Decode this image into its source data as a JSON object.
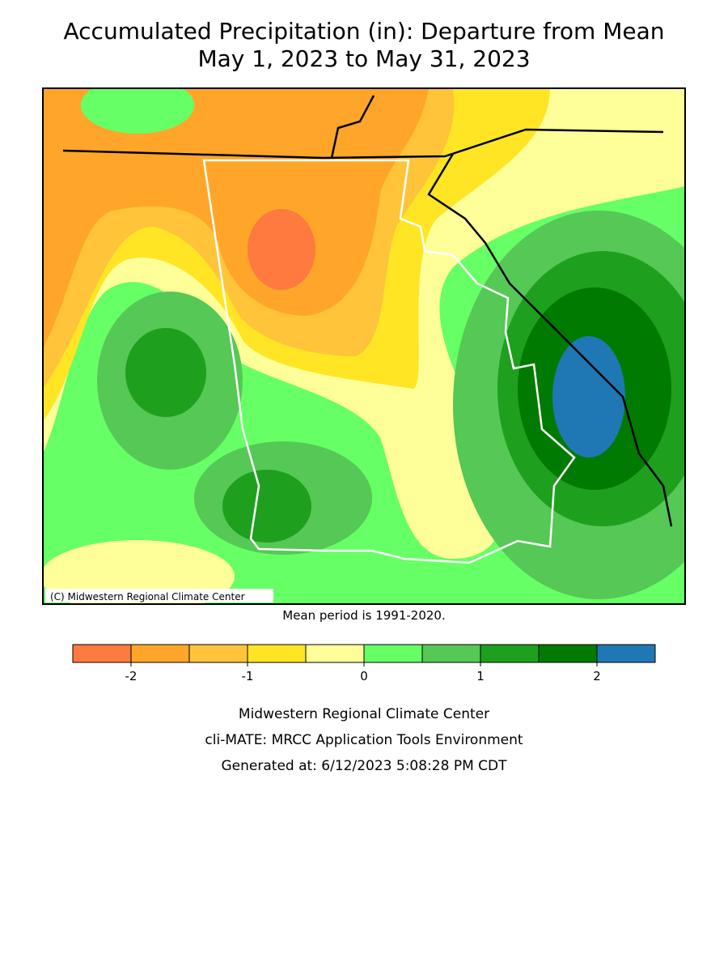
{
  "header": {
    "title": "Accumulated Precipitation (in): Departure from Mean",
    "subtitle": "May 1, 2023 to May 31, 2023"
  },
  "map": {
    "copyright": "(C) Midwestern Regional Climate Center",
    "note": "Mean period is 1991-2020."
  },
  "legend": {
    "colorbar": {
      "bins": [
        -2.5,
        -2,
        -1.5,
        -1,
        -0.5,
        0,
        0.5,
        1,
        1.5,
        2,
        2.5
      ],
      "colors": [
        "#ff7a3f",
        "#ffa62a",
        "#ffc43a",
        "#ffe524",
        "#ffff99",
        "#66ff66",
        "#55c855",
        "#1ea01e",
        "#007a00",
        "#1f78b4"
      ],
      "ticks": [
        -2,
        -1,
        0,
        1,
        2
      ]
    }
  },
  "footer": {
    "lines": [
      "Midwestern Regional Climate Center",
      "cli-MATE: MRCC Application Tools Environment",
      "Generated at: 6/12/2023 5:08:28 PM CDT"
    ]
  }
}
